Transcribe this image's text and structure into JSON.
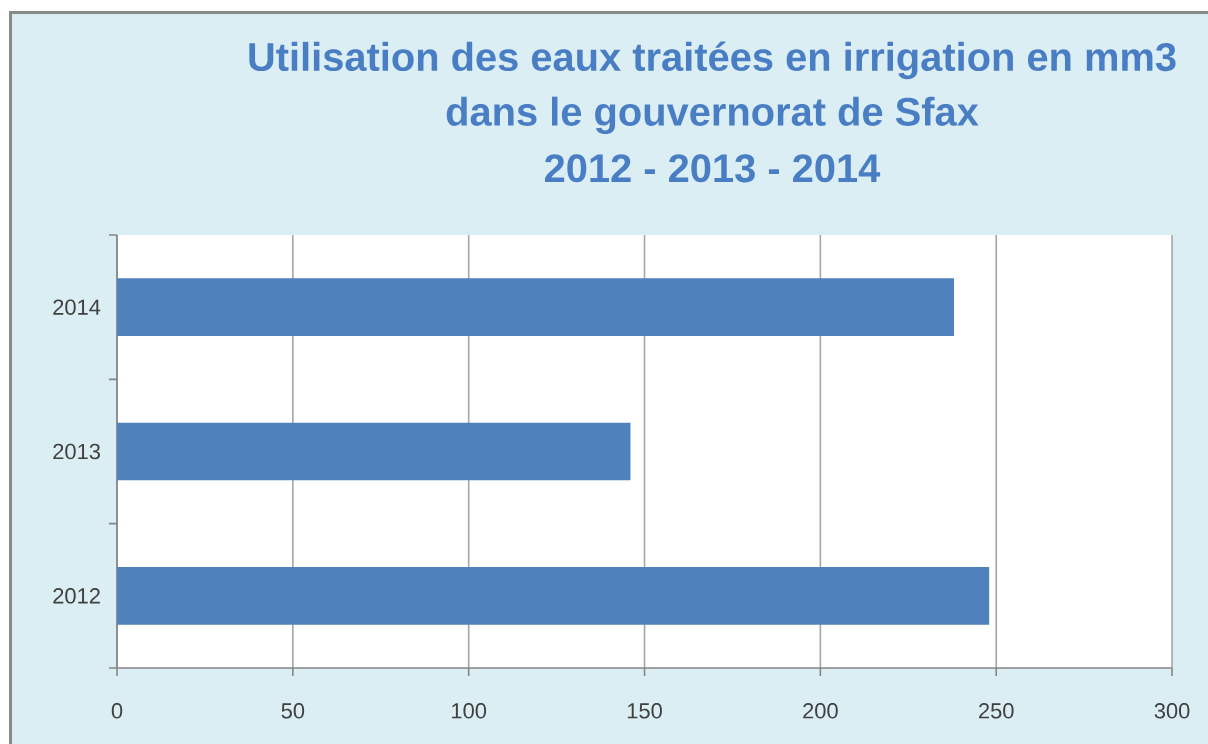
{
  "chart_data": {
    "type": "bar",
    "orientation": "horizontal",
    "title": "Utilisation des eaux traitées en irrigation en mm3 dans le gouvernorat de Sfax",
    "subtitle": "2012 - 2013 - 2014",
    "categories": [
      "2014",
      "2013",
      "2012"
    ],
    "values": [
      238,
      146,
      248
    ],
    "color": "#4f81bd",
    "xlim": [
      0,
      300
    ],
    "xticks": [
      0,
      50,
      100,
      150,
      200,
      250,
      300
    ],
    "grid": "x"
  }
}
